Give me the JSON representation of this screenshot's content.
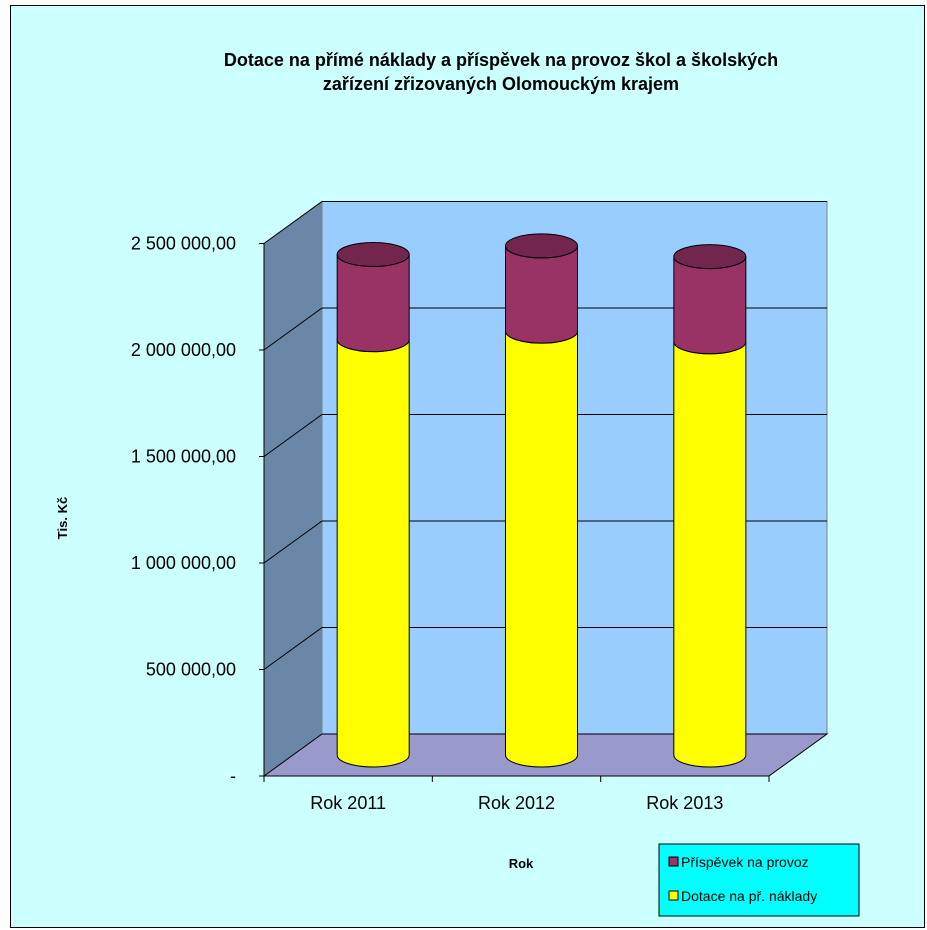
{
  "chart_data": {
    "type": "bar",
    "stacked": true,
    "style": "3d-cylinder",
    "title": [
      "Dotace na přímé náklady a příspěvek na provoz škol a školských",
      "zařízení zřizovaných Olomouckým krajem"
    ],
    "xlabel": "Rok",
    "ylabel": "Tis. Kč",
    "categories": [
      "Rok 2011",
      "Rok 2012",
      "Rok 2013"
    ],
    "y_tick_labels": [
      "-",
      "500 000,00",
      "1 000 000,00",
      "1 500 000,00",
      "2 000 000,00",
      "2 500 000,00"
    ],
    "y_ticks": [
      0,
      500000,
      1000000,
      1500000,
      2000000,
      2500000
    ],
    "ylim": [
      0,
      2500000
    ],
    "series": [
      {
        "name": "Dotace na př. náklady",
        "color": "#ffff00",
        "values": [
          1950000,
          1990000,
          1940000
        ]
      },
      {
        "name": "Příspěvek na provoz",
        "color": "#993366",
        "values": [
          400000,
          400000,
          400000
        ]
      }
    ],
    "legend_entries": [
      "Příspěvek na provoz",
      "Dotace na př. náklady"
    ],
    "legend_position": "bottom-right",
    "colors": {
      "background": "#ccffff",
      "back_wall": "#99ccff",
      "side_wall": "#6b87a8",
      "floor": "#9999cc",
      "legend_bg": "#00ffff"
    },
    "grid": true
  }
}
